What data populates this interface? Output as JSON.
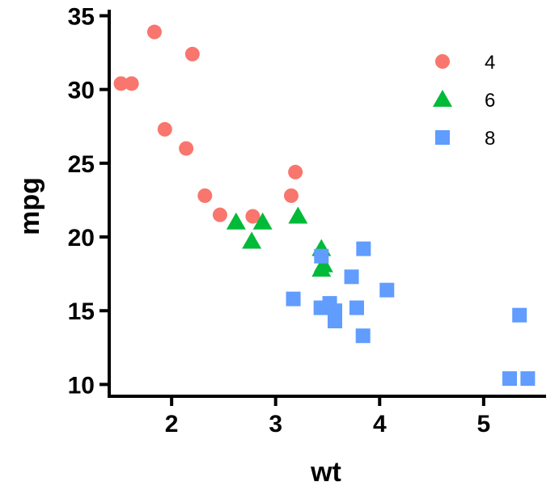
{
  "chart_data": {
    "type": "scatter",
    "xlabel": "wt",
    "ylabel": "mpg",
    "xlim": [
      1.4,
      5.6
    ],
    "ylim": [
      9.2,
      35.3
    ],
    "x_ticks": [
      "2",
      "3",
      "4",
      "5"
    ],
    "y_ticks": [
      "10",
      "15",
      "20",
      "25",
      "30",
      "35"
    ],
    "legend": {
      "position": "top-right",
      "entries": [
        "4",
        "6",
        "8"
      ]
    },
    "colors": {
      "4": "#F8766D",
      "6": "#00BA38",
      "8": "#619CFF"
    },
    "markers": {
      "4": "circle",
      "6": "triangle",
      "8": "square"
    },
    "series": [
      {
        "name": "4",
        "x": [
          1.513,
          1.615,
          1.835,
          1.935,
          2.14,
          2.2,
          2.32,
          2.465,
          2.78,
          3.15,
          3.19
        ],
        "y": [
          30.4,
          30.4,
          33.9,
          27.3,
          26.0,
          32.4,
          22.8,
          21.5,
          21.4,
          22.8,
          24.4
        ]
      },
      {
        "name": "6",
        "x": [
          2.62,
          2.77,
          2.875,
          3.215,
          3.44,
          3.44,
          3.46
        ],
        "y": [
          21.0,
          19.7,
          21.0,
          21.4,
          19.2,
          17.8,
          18.1
        ]
      },
      {
        "name": "8",
        "x": [
          3.17,
          3.435,
          3.44,
          3.52,
          3.57,
          3.57,
          3.73,
          3.78,
          3.84,
          3.845,
          4.07,
          5.25,
          5.345,
          5.424
        ],
        "y": [
          15.8,
          15.2,
          18.7,
          15.5,
          14.3,
          15.0,
          17.3,
          15.2,
          13.3,
          19.2,
          16.4,
          10.4,
          14.7,
          10.4
        ]
      }
    ]
  }
}
